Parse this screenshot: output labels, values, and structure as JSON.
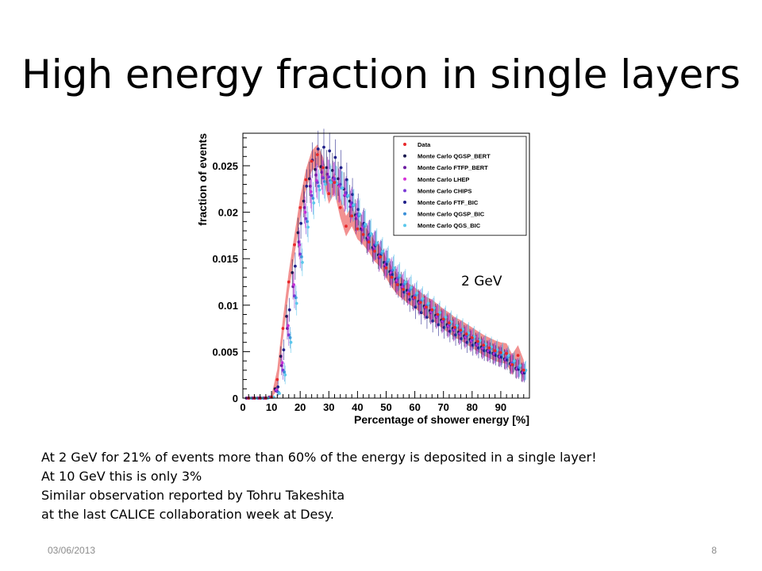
{
  "slide": {
    "title": "High energy fraction in single layers",
    "energy_label": "2 GeV",
    "notes": [
      "At 2 GeV  for 21% of events more than 60% of the energy is deposited in a single layer!",
      "At 10 GeV this is only 3%",
      "Similar observation reported by Tohru Takeshita",
      "at the last CALICE collaboration week at Desy."
    ],
    "footer_date": "03/06/2013",
    "page_number": "8"
  },
  "chart_data": {
    "type": "scatter",
    "xlabel": "Percentage of shower energy [%]",
    "ylabel": "fraction of events",
    "xlim": [
      0,
      100
    ],
    "ylim": [
      0,
      0.0285
    ],
    "xticks": [
      0,
      10,
      20,
      30,
      40,
      50,
      60,
      70,
      80,
      90
    ],
    "yticks": [
      0,
      0.005,
      0.01,
      0.015,
      0.02,
      0.025
    ],
    "ytick_labels": [
      "0",
      "0.005",
      "0.01",
      "0.015",
      "0.02",
      "0.025"
    ],
    "legend_position": "top-right",
    "x": [
      2,
      4,
      6,
      8,
      10,
      12,
      14,
      16,
      18,
      20,
      22,
      24,
      26,
      28,
      30,
      32,
      34,
      36,
      38,
      40,
      42,
      44,
      46,
      48,
      50,
      52,
      54,
      56,
      58,
      60,
      62,
      64,
      66,
      68,
      70,
      72,
      74,
      76,
      78,
      80,
      82,
      84,
      86,
      88,
      90,
      92,
      94,
      96,
      98
    ],
    "series": [
      {
        "name": "Data",
        "color": "#e8282b",
        "values": [
          0,
          0,
          0,
          0,
          0.0001,
          0.002,
          0.0075,
          0.0125,
          0.0165,
          0.0205,
          0.0235,
          0.0255,
          0.0262,
          0.0248,
          0.022,
          0.0232,
          0.0205,
          0.0185,
          0.0196,
          0.0182,
          0.0176,
          0.0168,
          0.0158,
          0.0152,
          0.014,
          0.013,
          0.0122,
          0.0117,
          0.0112,
          0.0108,
          0.0103,
          0.0098,
          0.0095,
          0.009,
          0.0085,
          0.0081,
          0.0076,
          0.0073,
          0.0069,
          0.0065,
          0.0061,
          0.0057,
          0.0054,
          0.0051,
          0.0049,
          0.0048,
          0.0036,
          0.0046,
          0.003
        ],
        "band": 0.0011
      },
      {
        "name": "Monte Carlo QGSP_BERT",
        "color": "#1a1a4e",
        "values": [
          0,
          0,
          0,
          0,
          0.0001,
          0.001,
          0.0045,
          0.0088,
          0.0135,
          0.0178,
          0.0212,
          0.0236,
          0.0246,
          0.0249,
          0.0248,
          0.0245,
          0.0236,
          0.0225,
          0.0212,
          0.0197,
          0.0182,
          0.0172,
          0.0162,
          0.0154,
          0.0146,
          0.0136,
          0.0128,
          0.0122,
          0.0116,
          0.0109,
          0.0104,
          0.0099,
          0.0094,
          0.0089,
          0.0084,
          0.0079,
          0.0075,
          0.0071,
          0.0067,
          0.0063,
          0.0059,
          0.0055,
          0.0051,
          0.0048,
          0.0045,
          0.0042,
          0.0037,
          0.0032,
          0.0028
        ]
      },
      {
        "name": "Monte Carlo FTFP_BERT",
        "color": "#6b1aa0",
        "values": [
          0,
          0,
          0,
          0,
          0.0001,
          0.0008,
          0.0035,
          0.0075,
          0.012,
          0.0168,
          0.0205,
          0.0228,
          0.024,
          0.0243,
          0.0241,
          0.0237,
          0.0229,
          0.0218,
          0.0206,
          0.0193,
          0.0181,
          0.017,
          0.016,
          0.0151,
          0.0142,
          0.0133,
          0.0125,
          0.0119,
          0.0113,
          0.0107,
          0.0102,
          0.0097,
          0.0092,
          0.0087,
          0.0082,
          0.0077,
          0.0073,
          0.0069,
          0.0065,
          0.0061,
          0.0057,
          0.0053,
          0.005,
          0.0047,
          0.0044,
          0.0041,
          0.0036,
          0.0031,
          0.0027
        ]
      },
      {
        "name": "Monte Carlo LHEP",
        "color": "#d631d8",
        "values": [
          0,
          0,
          0,
          0,
          0.0001,
          0.0009,
          0.0038,
          0.0078,
          0.0122,
          0.0165,
          0.02,
          0.0222,
          0.0234,
          0.0238,
          0.0238,
          0.0235,
          0.0228,
          0.0219,
          0.0208,
          0.0196,
          0.0184,
          0.0173,
          0.0163,
          0.0153,
          0.0144,
          0.0135,
          0.0127,
          0.012,
          0.0114,
          0.0108,
          0.0103,
          0.0098,
          0.0093,
          0.0088,
          0.0083,
          0.0078,
          0.0074,
          0.007,
          0.0066,
          0.0062,
          0.0058,
          0.0054,
          0.0051,
          0.0048,
          0.0045,
          0.0042,
          0.0037,
          0.0032,
          0.0028
        ]
      },
      {
        "name": "Monte Carlo CHIPS",
        "color": "#7a3ad6",
        "values": [
          0,
          0,
          0,
          0,
          0.0001,
          0.0007,
          0.003,
          0.0068,
          0.011,
          0.0155,
          0.0193,
          0.0218,
          0.0232,
          0.0237,
          0.0238,
          0.0236,
          0.023,
          0.0221,
          0.021,
          0.0198,
          0.0186,
          0.0175,
          0.0165,
          0.0155,
          0.0146,
          0.0137,
          0.0129,
          0.0122,
          0.0116,
          0.011,
          0.0104,
          0.0099,
          0.0094,
          0.0089,
          0.0084,
          0.0079,
          0.0075,
          0.0071,
          0.0067,
          0.0063,
          0.0059,
          0.0055,
          0.0052,
          0.0049,
          0.0046,
          0.0043,
          0.0038,
          0.0033,
          0.0029
        ]
      },
      {
        "name": "Monte Carlo FTF_BIC",
        "color": "#20208a",
        "values": [
          0,
          0,
          0,
          0,
          0.0001,
          0.0012,
          0.0052,
          0.0095,
          0.0142,
          0.0188,
          0.0228,
          0.0256,
          0.0268,
          0.027,
          0.0266,
          0.0259,
          0.0248,
          0.0235,
          0.0219,
          0.0203,
          0.0188,
          0.0176,
          0.0164,
          0.0154,
          0.0144,
          0.0133,
          0.0122,
          0.0114,
          0.0106,
          0.0098,
          0.0092,
          0.0087,
          0.0083,
          0.0079,
          0.0076,
          0.0072,
          0.0068,
          0.0064,
          0.006,
          0.0057,
          0.0054,
          0.0051,
          0.0049,
          0.0046,
          0.0044,
          0.0041,
          0.0036,
          0.0031,
          0.0027
        ]
      },
      {
        "name": "Monte Carlo QGSP_BIC",
        "color": "#3a8fd8",
        "values": [
          0,
          0,
          0,
          0,
          0.0001,
          0.0006,
          0.0028,
          0.0065,
          0.0108,
          0.0152,
          0.019,
          0.0215,
          0.0228,
          0.0233,
          0.0234,
          0.0232,
          0.0226,
          0.0217,
          0.0207,
          0.0196,
          0.0185,
          0.0175,
          0.0165,
          0.0156,
          0.0147,
          0.0138,
          0.013,
          0.0123,
          0.0117,
          0.0111,
          0.0105,
          0.01,
          0.0095,
          0.009,
          0.0085,
          0.008,
          0.0076,
          0.0072,
          0.0068,
          0.0064,
          0.006,
          0.0056,
          0.0053,
          0.005,
          0.0047,
          0.0044,
          0.0038,
          0.0033,
          0.0029
        ]
      },
      {
        "name": "Monte Carlo QGS_BIC",
        "color": "#5bc8ec",
        "values": [
          0,
          0,
          0,
          0,
          0.0001,
          0.0005,
          0.0025,
          0.006,
          0.0102,
          0.0146,
          0.0184,
          0.021,
          0.0224,
          0.023,
          0.0232,
          0.0231,
          0.0226,
          0.0218,
          0.0208,
          0.0198,
          0.0187,
          0.0177,
          0.0167,
          0.0158,
          0.0149,
          0.014,
          0.0132,
          0.0125,
          0.0119,
          0.0113,
          0.0107,
          0.0102,
          0.0097,
          0.0092,
          0.0087,
          0.0082,
          0.0078,
          0.0074,
          0.007,
          0.0066,
          0.0062,
          0.0058,
          0.0055,
          0.0052,
          0.0049,
          0.0046,
          0.004,
          0.0035,
          0.003
        ]
      }
    ]
  }
}
